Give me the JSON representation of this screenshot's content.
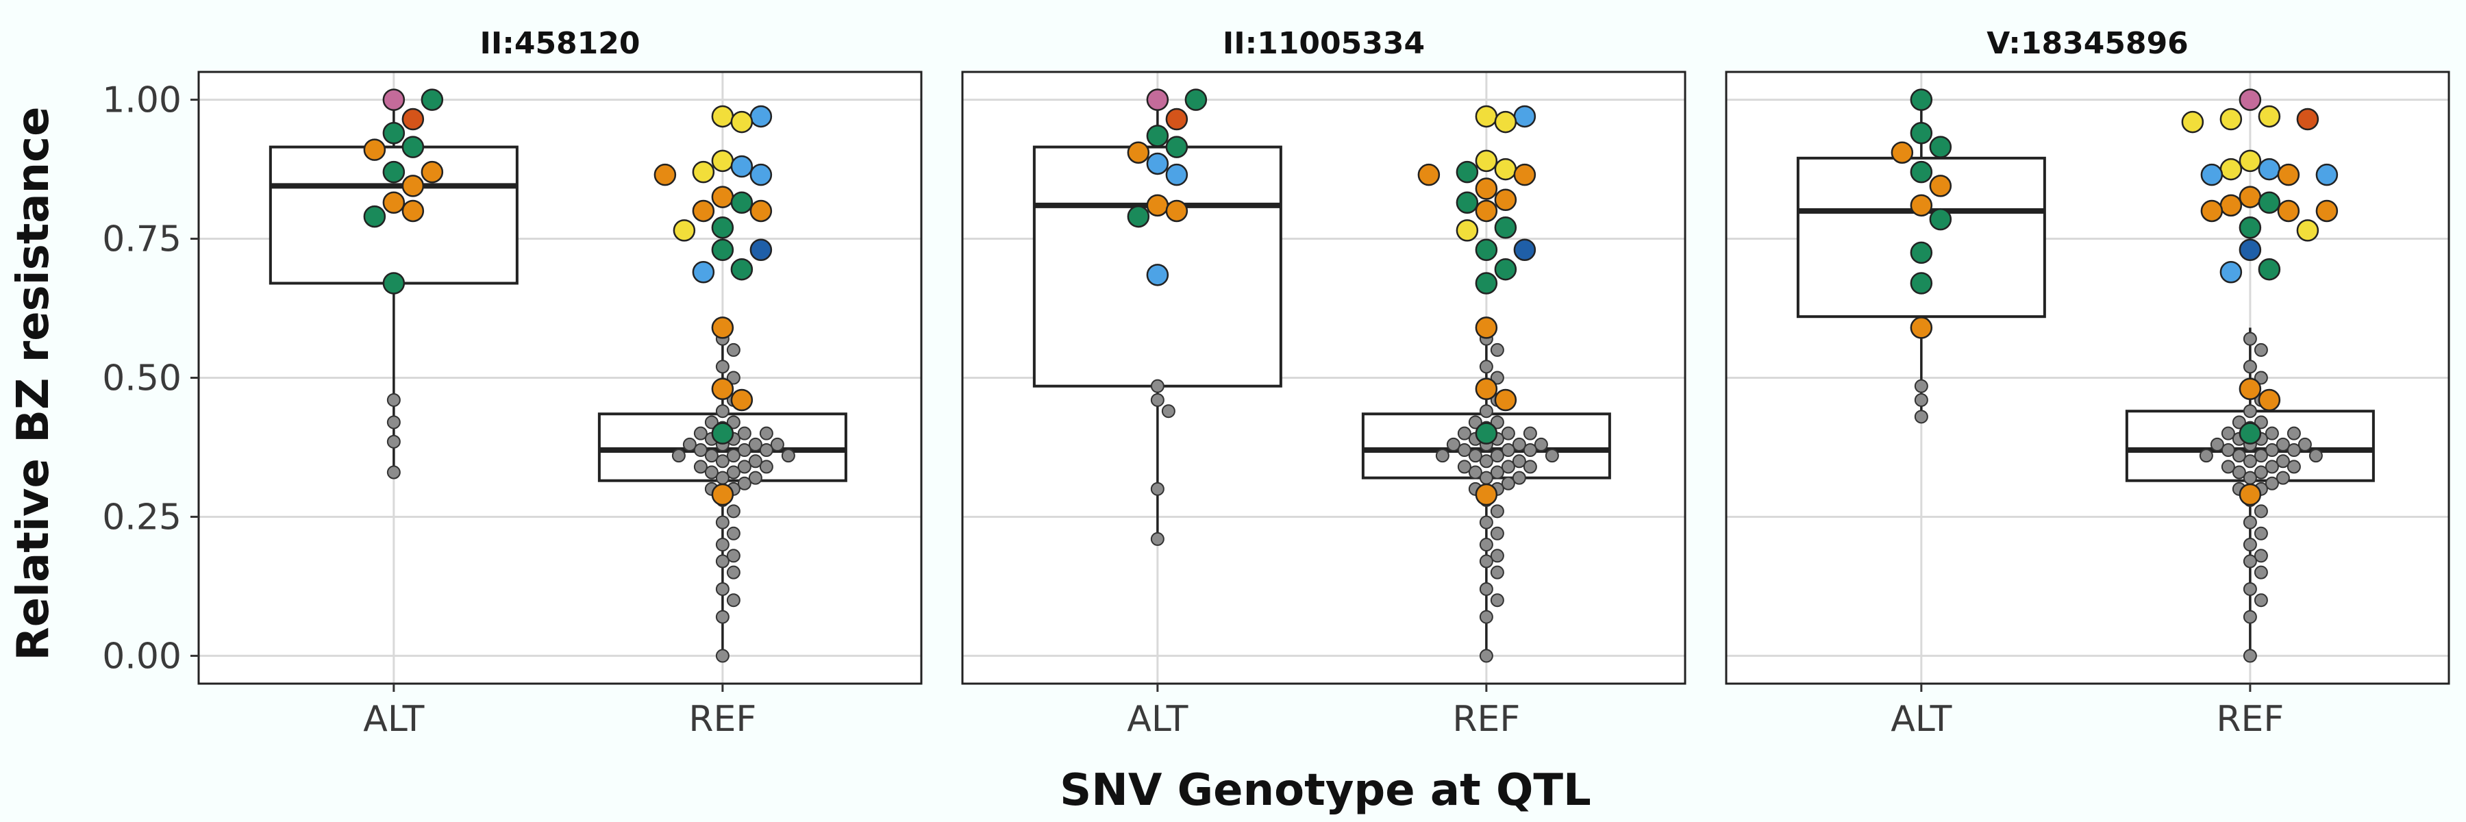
{
  "chart_data": {
    "type": "box",
    "facets": [
      "II:458120",
      "II:11005334",
      "V:18345896"
    ],
    "categories": [
      "ALT",
      "REF"
    ],
    "xlabel": "SNV Genotype at QTL",
    "ylabel": "Relative BZ resistance",
    "ylim": [
      -0.05,
      1.05
    ],
    "yticks": [
      "0.00",
      "0.25",
      "0.50",
      "0.75",
      "1.00"
    ],
    "ytick_values": [
      0,
      0.25,
      0.5,
      0.75,
      1.0
    ],
    "grid": true,
    "colors": {
      "grey": "#8c8c8c",
      "green": "#1a8a5a",
      "orange": "#e68a12",
      "yellow": "#f2de3a",
      "blue": "#4da3e6",
      "darkblue": "#1f5fa8",
      "red": "#d4541a",
      "pink": "#c46b9a"
    },
    "panels": [
      {
        "facet": "II:458120",
        "boxes": [
          {
            "category": "ALT",
            "min": 0.33,
            "q1": 0.67,
            "median": 0.845,
            "q3": 0.915,
            "max": 1.0
          },
          {
            "category": "REF",
            "min": 0.0,
            "q1": 0.315,
            "median": 0.37,
            "q3": 0.435,
            "max": 0.59
          }
        ],
        "colored_points": [
          {
            "category": "ALT",
            "color": "pink",
            "y": 1.0
          },
          {
            "category": "ALT",
            "color": "green",
            "y": 1.0
          },
          {
            "category": "ALT",
            "color": "red",
            "y": 0.965
          },
          {
            "category": "ALT",
            "color": "green",
            "y": 0.94
          },
          {
            "category": "ALT",
            "color": "orange",
            "y": 0.91
          },
          {
            "category": "ALT",
            "color": "green",
            "y": 0.915
          },
          {
            "category": "ALT",
            "color": "green",
            "y": 0.87
          },
          {
            "category": "ALT",
            "color": "orange",
            "y": 0.87
          },
          {
            "category": "ALT",
            "color": "orange",
            "y": 0.845
          },
          {
            "category": "ALT",
            "color": "orange",
            "y": 0.815
          },
          {
            "category": "ALT",
            "color": "orange",
            "y": 0.8
          },
          {
            "category": "ALT",
            "color": "green",
            "y": 0.79
          },
          {
            "category": "ALT",
            "color": "green",
            "y": 0.67
          },
          {
            "category": "REF",
            "color": "yellow",
            "y": 0.97
          },
          {
            "category": "REF",
            "color": "yellow",
            "y": 0.96
          },
          {
            "category": "REF",
            "color": "blue",
            "y": 0.97
          },
          {
            "category": "REF",
            "color": "yellow",
            "y": 0.89
          },
          {
            "category": "REF",
            "color": "yellow",
            "y": 0.87
          },
          {
            "category": "REF",
            "color": "blue",
            "y": 0.865
          },
          {
            "category": "REF",
            "color": "orange",
            "y": 0.865
          },
          {
            "category": "REF",
            "color": "blue",
            "y": 0.88
          },
          {
            "category": "REF",
            "color": "orange",
            "y": 0.825
          },
          {
            "category": "REF",
            "color": "green",
            "y": 0.815
          },
          {
            "category": "REF",
            "color": "orange",
            "y": 0.8
          },
          {
            "category": "REF",
            "color": "orange",
            "y": 0.8
          },
          {
            "category": "REF",
            "color": "yellow",
            "y": 0.765
          },
          {
            "category": "REF",
            "color": "green",
            "y": 0.77
          },
          {
            "category": "REF",
            "color": "green",
            "y": 0.73
          },
          {
            "category": "REF",
            "color": "darkblue",
            "y": 0.73
          },
          {
            "category": "REF",
            "color": "blue",
            "y": 0.69
          },
          {
            "category": "REF",
            "color": "green",
            "y": 0.695
          },
          {
            "category": "REF",
            "color": "orange",
            "y": 0.59
          },
          {
            "category": "REF",
            "color": "orange",
            "y": 0.48
          },
          {
            "category": "REF",
            "color": "orange",
            "y": 0.46
          },
          {
            "category": "REF",
            "color": "green",
            "y": 0.4
          },
          {
            "category": "REF",
            "color": "orange",
            "y": 0.29
          }
        ],
        "grey_points": [
          {
            "category": "ALT",
            "y": [
              0.46,
              0.42,
              0.385,
              0.33
            ]
          },
          {
            "category": "REF",
            "y": [
              0.0,
              0.07,
              0.1,
              0.12,
              0.15,
              0.17,
              0.18,
              0.2,
              0.22,
              0.24,
              0.26,
              0.28,
              0.3,
              0.32,
              0.34,
              0.36,
              0.38,
              0.4,
              0.42,
              0.44,
              0.46,
              0.48,
              0.5,
              0.52,
              0.55,
              0.57
            ]
          }
        ]
      },
      {
        "facet": "II:11005334",
        "boxes": [
          {
            "category": "ALT",
            "min": 0.21,
            "q1": 0.485,
            "median": 0.81,
            "q3": 0.915,
            "max": 1.0
          },
          {
            "category": "REF",
            "min": 0.0,
            "q1": 0.32,
            "median": 0.37,
            "q3": 0.435,
            "max": 0.59
          }
        ],
        "colored_points": [
          {
            "category": "ALT",
            "color": "pink",
            "y": 1.0
          },
          {
            "category": "ALT",
            "color": "green",
            "y": 1.0
          },
          {
            "category": "ALT",
            "color": "red",
            "y": 0.965
          },
          {
            "category": "ALT",
            "color": "green",
            "y": 0.935
          },
          {
            "category": "ALT",
            "color": "orange",
            "y": 0.905
          },
          {
            "category": "ALT",
            "color": "green",
            "y": 0.915
          },
          {
            "category": "ALT",
            "color": "blue",
            "y": 0.885
          },
          {
            "category": "ALT",
            "color": "blue",
            "y": 0.865
          },
          {
            "category": "ALT",
            "color": "orange",
            "y": 0.81
          },
          {
            "category": "ALT",
            "color": "orange",
            "y": 0.8
          },
          {
            "category": "ALT",
            "color": "green",
            "y": 0.79
          },
          {
            "category": "ALT",
            "color": "blue",
            "y": 0.685
          },
          {
            "category": "REF",
            "color": "yellow",
            "y": 0.97
          },
          {
            "category": "REF",
            "color": "yellow",
            "y": 0.96
          },
          {
            "category": "REF",
            "color": "blue",
            "y": 0.97
          },
          {
            "category": "REF",
            "color": "yellow",
            "y": 0.89
          },
          {
            "category": "REF",
            "color": "green",
            "y": 0.87
          },
          {
            "category": "REF",
            "color": "orange",
            "y": 0.865
          },
          {
            "category": "REF",
            "color": "orange",
            "y": 0.865
          },
          {
            "category": "REF",
            "color": "yellow",
            "y": 0.875
          },
          {
            "category": "REF",
            "color": "orange",
            "y": 0.84
          },
          {
            "category": "REF",
            "color": "green",
            "y": 0.815
          },
          {
            "category": "REF",
            "color": "orange",
            "y": 0.82
          },
          {
            "category": "REF",
            "color": "orange",
            "y": 0.8
          },
          {
            "category": "REF",
            "color": "green",
            "y": 0.77
          },
          {
            "category": "REF",
            "color": "yellow",
            "y": 0.765
          },
          {
            "category": "REF",
            "color": "green",
            "y": 0.73
          },
          {
            "category": "REF",
            "color": "darkblue",
            "y": 0.73
          },
          {
            "category": "REF",
            "color": "green",
            "y": 0.695
          },
          {
            "category": "REF",
            "color": "green",
            "y": 0.67
          },
          {
            "category": "REF",
            "color": "orange",
            "y": 0.59
          },
          {
            "category": "REF",
            "color": "orange",
            "y": 0.48
          },
          {
            "category": "REF",
            "color": "orange",
            "y": 0.46
          },
          {
            "category": "REF",
            "color": "green",
            "y": 0.4
          },
          {
            "category": "REF",
            "color": "orange",
            "y": 0.29
          }
        ],
        "grey_points": [
          {
            "category": "ALT",
            "y": [
              0.485,
              0.46,
              0.44,
              0.3,
              0.21
            ]
          },
          {
            "category": "REF",
            "y": [
              0.0,
              0.07,
              0.1,
              0.12,
              0.15,
              0.17,
              0.18,
              0.2,
              0.22,
              0.24,
              0.26,
              0.28,
              0.3,
              0.32,
              0.34,
              0.36,
              0.38,
              0.4,
              0.42,
              0.44,
              0.46,
              0.48,
              0.5,
              0.52,
              0.55,
              0.57
            ]
          }
        ]
      },
      {
        "facet": "V:18345896",
        "boxes": [
          {
            "category": "ALT",
            "min": 0.43,
            "q1": 0.61,
            "median": 0.8,
            "q3": 0.895,
            "max": 1.0
          },
          {
            "category": "REF",
            "min": 0.0,
            "q1": 0.315,
            "median": 0.37,
            "q3": 0.44,
            "max": 0.59
          }
        ],
        "colored_points": [
          {
            "category": "ALT",
            "color": "green",
            "y": 1.0
          },
          {
            "category": "ALT",
            "color": "green",
            "y": 0.94
          },
          {
            "category": "ALT",
            "color": "green",
            "y": 0.915
          },
          {
            "category": "ALT",
            "color": "orange",
            "y": 0.905
          },
          {
            "category": "ALT",
            "color": "green",
            "y": 0.87
          },
          {
            "category": "ALT",
            "color": "orange",
            "y": 0.845
          },
          {
            "category": "ALT",
            "color": "orange",
            "y": 0.81
          },
          {
            "category": "ALT",
            "color": "green",
            "y": 0.785
          },
          {
            "category": "ALT",
            "color": "green",
            "y": 0.725
          },
          {
            "category": "ALT",
            "color": "green",
            "y": 0.67
          },
          {
            "category": "ALT",
            "color": "orange",
            "y": 0.59
          },
          {
            "category": "REF",
            "color": "pink",
            "y": 1.0
          },
          {
            "category": "REF",
            "color": "yellow",
            "y": 0.97
          },
          {
            "category": "REF",
            "color": "yellow",
            "y": 0.965
          },
          {
            "category": "REF",
            "color": "yellow",
            "y": 0.96
          },
          {
            "category": "REF",
            "color": "red",
            "y": 0.965
          },
          {
            "category": "REF",
            "color": "blue",
            "y": 0.875
          },
          {
            "category": "REF",
            "color": "orange",
            "y": 0.865
          },
          {
            "category": "REF",
            "color": "blue",
            "y": 0.865
          },
          {
            "category": "REF",
            "color": "blue",
            "y": 0.865
          },
          {
            "category": "REF",
            "color": "yellow",
            "y": 0.875
          },
          {
            "category": "REF",
            "color": "yellow",
            "y": 0.89
          },
          {
            "category": "REF",
            "color": "orange",
            "y": 0.825
          },
          {
            "category": "REF",
            "color": "orange",
            "y": 0.81
          },
          {
            "category": "REF",
            "color": "orange",
            "y": 0.8
          },
          {
            "category": "REF",
            "color": "orange",
            "y": 0.8
          },
          {
            "category": "REF",
            "color": "orange",
            "y": 0.8
          },
          {
            "category": "REF",
            "color": "green",
            "y": 0.815
          },
          {
            "category": "REF",
            "color": "yellow",
            "y": 0.765
          },
          {
            "category": "REF",
            "color": "green",
            "y": 0.77
          },
          {
            "category": "REF",
            "color": "darkblue",
            "y": 0.73
          },
          {
            "category": "REF",
            "color": "blue",
            "y": 0.69
          },
          {
            "category": "REF",
            "color": "green",
            "y": 0.695
          },
          {
            "category": "REF",
            "color": "orange",
            "y": 0.48
          },
          {
            "category": "REF",
            "color": "orange",
            "y": 0.46
          },
          {
            "category": "REF",
            "color": "green",
            "y": 0.4
          },
          {
            "category": "REF",
            "color": "orange",
            "y": 0.29
          }
        ],
        "grey_points": [
          {
            "category": "ALT",
            "y": [
              0.485,
              0.46,
              0.43
            ]
          },
          {
            "category": "REF",
            "y": [
              0.0,
              0.07,
              0.1,
              0.12,
              0.15,
              0.17,
              0.18,
              0.2,
              0.22,
              0.24,
              0.26,
              0.28,
              0.3,
              0.32,
              0.34,
              0.36,
              0.38,
              0.4,
              0.42,
              0.44,
              0.46,
              0.48,
              0.5,
              0.52,
              0.55,
              0.57
            ]
          }
        ]
      }
    ]
  }
}
